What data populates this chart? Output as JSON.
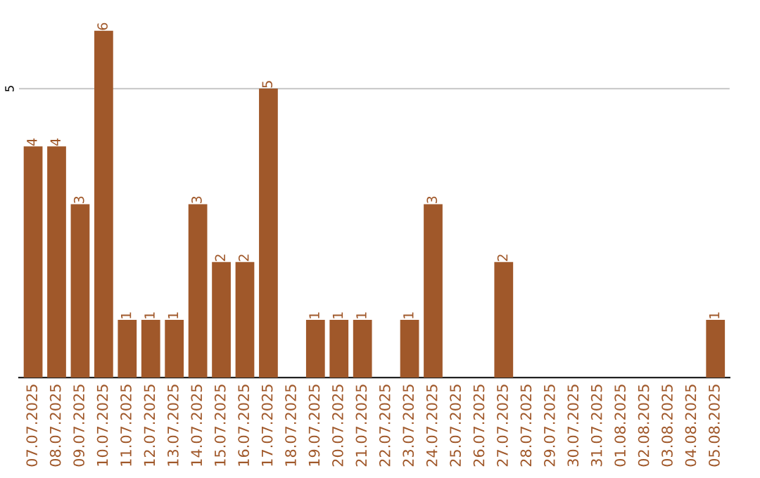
{
  "chart_data": {
    "type": "bar",
    "categories": [
      "07.07.2025",
      "08.07.2025",
      "09.07.2025",
      "10.07.2025",
      "11.07.2025",
      "12.07.2025",
      "13.07.2025",
      "14.07.2025",
      "15.07.2025",
      "16.07.2025",
      "17.07.2025",
      "18.07.2025",
      "19.07.2025",
      "20.07.2025",
      "21.07.2025",
      "22.07.2025",
      "23.07.2025",
      "24.07.2025",
      "25.07.2025",
      "26.07.2025",
      "27.07.2025",
      "28.07.2025",
      "29.07.2025",
      "30.07.2025",
      "31.07.2025",
      "01.08.2025",
      "02.08.2025",
      "03.08.2025",
      "04.08.2025",
      "05.08.2025"
    ],
    "values": [
      4,
      4,
      3,
      6,
      1,
      1,
      1,
      3,
      2,
      2,
      5,
      0,
      1,
      1,
      1,
      0,
      1,
      3,
      0,
      0,
      2,
      0,
      0,
      0,
      0,
      0,
      0,
      0,
      0,
      1
    ],
    "value_labels": [
      "4",
      "4",
      "3",
      "6",
      "1",
      "1",
      "1",
      "3",
      "2",
      "2",
      "5",
      null,
      "1",
      "1",
      "1",
      null,
      "1",
      "3",
      null,
      null,
      "2",
      null,
      null,
      null,
      null,
      null,
      null,
      null,
      null,
      "1"
    ],
    "color": "#a0582a",
    "ref_lines": [
      {
        "axis": "y",
        "value": 5,
        "label": "5",
        "color": "#cccccc"
      }
    ]
  }
}
